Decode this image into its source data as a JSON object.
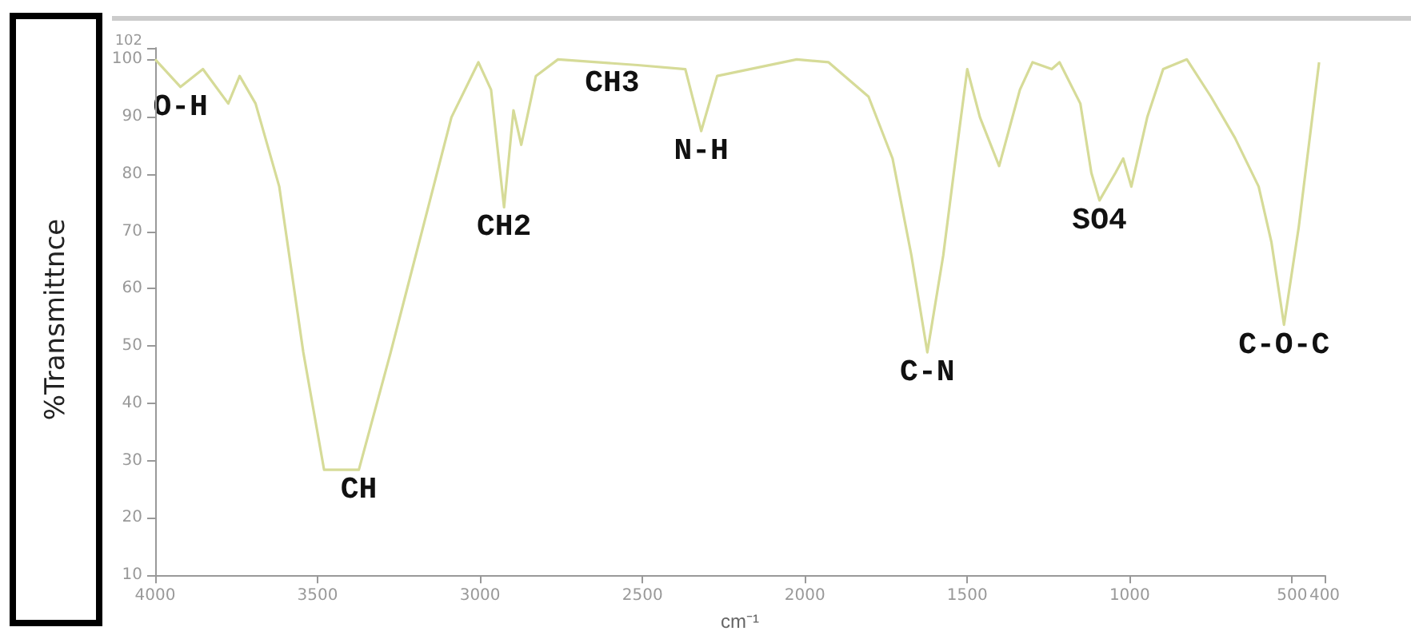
{
  "chart_data": {
    "type": "line",
    "ylabel": "%Transmittnce",
    "xlabel": "cm⁻¹",
    "xlim": [
      4000,
      400
    ],
    "xticks": [
      4000,
      3500,
      3000,
      2500,
      2000,
      1500,
      1000,
      500,
      400
    ],
    "ylim": [
      10,
      102
    ],
    "yticks": [
      10,
      20,
      30,
      40,
      50,
      60,
      70,
      80,
      90,
      100,
      102
    ],
    "grid": false,
    "marker": "none",
    "line_style": "solid",
    "series": [
      {
        "color": "#d6db98",
        "x": [
          4000,
          3922,
          3853,
          3775,
          3740,
          3691,
          3618,
          3544,
          3480,
          3373,
          3275,
          3176,
          3088,
          3005,
          2966,
          2926,
          2897,
          2873,
          2828,
          2760,
          2515,
          2368,
          2319,
          2270,
          2025,
          1927,
          1804,
          1730,
          1672,
          1623,
          1574,
          1525,
          1500,
          1461,
          1402,
          1338,
          1299,
          1240,
          1216,
          1152,
          1118,
          1093,
          1044,
          1020,
          995,
          946,
          897,
          824,
          750,
          676,
          603,
          564,
          525,
          480,
          417
        ],
        "values": [
          100,
          95.2,
          98.3,
          92.3,
          97.1,
          92.3,
          77.8,
          48.9,
          28.4,
          28.4,
          48.9,
          70.6,
          89.9,
          99.5,
          94.7,
          74.2,
          91.1,
          85.1,
          97.1,
          100,
          99,
          98.3,
          87.5,
          97.1,
          100,
          99.5,
          93.5,
          82.7,
          65.8,
          48.9,
          65.8,
          87.5,
          98.3,
          89.9,
          81.4,
          94.7,
          99.5,
          98.3,
          99.5,
          92.3,
          80.2,
          75.4,
          80.2,
          82.7,
          77.8,
          89.9,
          98.3,
          100,
          93.5,
          86.3,
          77.8,
          68.2,
          53.7,
          70.6,
          99.5
        ]
      }
    ],
    "annotations": [
      {
        "text": "O-H",
        "x": 3922,
        "y": 95.2
      },
      {
        "text": "CH",
        "x": 3373,
        "y": 28.4
      },
      {
        "text": "CH2",
        "x": 2926,
        "y": 74.2
      },
      {
        "text": "CH3",
        "x": 2593,
        "y": 99.3
      },
      {
        "text": "N-H",
        "x": 2319,
        "y": 87.5
      },
      {
        "text": "C-N",
        "x": 1623,
        "y": 48.9
      },
      {
        "text": "SO4",
        "x": 1093,
        "y": 75.4
      },
      {
        "text": "C-O-C",
        "x": 525,
        "y": 53.7
      }
    ]
  }
}
